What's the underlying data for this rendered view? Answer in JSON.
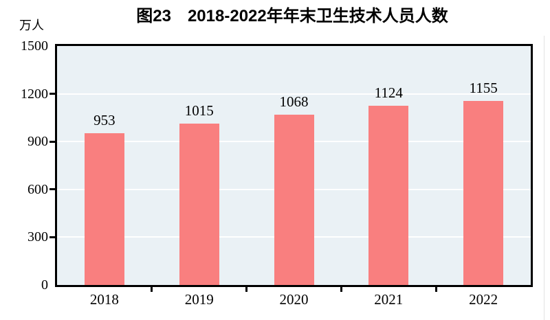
{
  "title": "图23　2018-2022年年末卫生技术人员人数",
  "unit_label": "万人",
  "colors": {
    "bar": "#f97f7f",
    "plot_bg": "#eaf1f5",
    "grid": "#ffffff",
    "axis": "#000000",
    "text": "#000000"
  },
  "chart_data": {
    "type": "bar",
    "categories": [
      "2018",
      "2019",
      "2020",
      "2021",
      "2022"
    ],
    "values": [
      953,
      1015,
      1068,
      1124,
      1155
    ],
    "title": "图23　2018-2022年年末卫生技术人员人数",
    "xlabel": "",
    "ylabel": "万人",
    "ylim": [
      0,
      1500
    ],
    "yticks": [
      0,
      300,
      600,
      900,
      1200,
      1500
    ],
    "grid": true,
    "gridline_color": "#ffffff",
    "bar_color": "#f97f7f",
    "plot_background": "#eaf1f5",
    "data_labels": true,
    "legend": false
  }
}
